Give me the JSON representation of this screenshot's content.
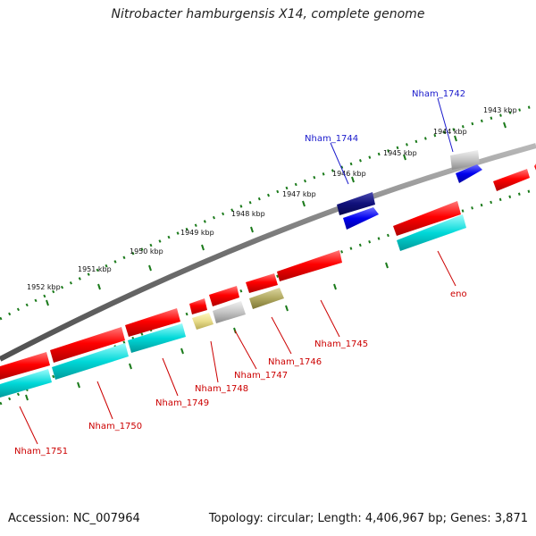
{
  "title": "Nitrobacter hamburgensis X14, complete genome",
  "footer": {
    "accession": "Accession: NC_007964",
    "stats": "Topology: circular; Length: 4,406,967 bp; Genes: 3,871"
  },
  "colors": {
    "tick": "#1a7a1a",
    "backbone": "#808080",
    "label_red": "#cc0000",
    "label_blue": "#1a1acc"
  },
  "kbp_labels": [
    "1943 kbp",
    "1944 kbp",
    "1945 kbp",
    "1946 kbp",
    "1947 kbp",
    "1948 kbp",
    "1949 kbp",
    "1950 kbp",
    "1951 kbp",
    "1952 kbp"
  ],
  "genes": [
    {
      "name": "Nham_1742",
      "color": "blue"
    },
    {
      "name": "Nham_1744",
      "color": "blue"
    },
    {
      "name": "eno",
      "color": "red"
    },
    {
      "name": "Nham_1745",
      "color": "red"
    },
    {
      "name": "Nham_1746",
      "color": "red"
    },
    {
      "name": "Nham_1747",
      "color": "red"
    },
    {
      "name": "Nham_1748",
      "color": "red"
    },
    {
      "name": "Nham_1749",
      "color": "red"
    },
    {
      "name": "Nham_1750",
      "color": "red"
    },
    {
      "name": "Nham_1751",
      "color": "red"
    }
  ]
}
